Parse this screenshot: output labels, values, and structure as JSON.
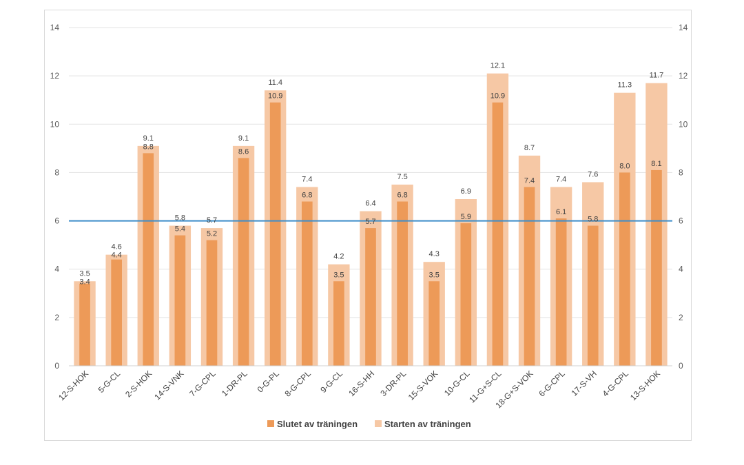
{
  "chart_data": {
    "type": "bar",
    "title": "",
    "xlabel": "",
    "ylabel": "",
    "ylim": [
      0,
      14
    ],
    "yticks": [
      0,
      2,
      4,
      6,
      8,
      10,
      12,
      14
    ],
    "secondary_yticks": [
      0,
      2,
      4,
      6,
      8,
      10,
      12,
      14
    ],
    "grid": true,
    "legend_position": "bottom-center",
    "categories": [
      "12-S-HOK",
      "5-G-CL",
      "2-S-HOK",
      "14-S-VNK",
      "7-G-CPL",
      "1-DR-PL",
      "0-G-PL",
      "8-G-CPL",
      "9-G-CL",
      "16-S-HH",
      "3-DR-PL",
      "15-S-VOK",
      "10-G-CL",
      "11-G+S-CL",
      "18-G+S-VOK",
      "6-G-CPL",
      "17-S-VH",
      "4-G-CPL",
      "13-S-HOK"
    ],
    "series": [
      {
        "name": "Slutet av träningen",
        "color": "#ed9a58",
        "values": [
          3.4,
          4.4,
          8.8,
          5.4,
          5.2,
          8.6,
          10.9,
          6.8,
          3.5,
          5.7,
          6.8,
          3.5,
          5.9,
          10.9,
          7.4,
          6.1,
          5.8,
          8.0,
          8.1
        ]
      },
      {
        "name": "Starten av träningen",
        "color": "#f6c8a5",
        "values": [
          3.5,
          4.6,
          9.1,
          5.8,
          5.7,
          9.1,
          11.4,
          7.4,
          4.2,
          6.4,
          7.5,
          4.3,
          6.9,
          12.1,
          8.7,
          7.4,
          7.6,
          11.3,
          11.7
        ]
      }
    ],
    "reference_line": {
      "value": 6,
      "color": "#3d8ec9"
    }
  }
}
